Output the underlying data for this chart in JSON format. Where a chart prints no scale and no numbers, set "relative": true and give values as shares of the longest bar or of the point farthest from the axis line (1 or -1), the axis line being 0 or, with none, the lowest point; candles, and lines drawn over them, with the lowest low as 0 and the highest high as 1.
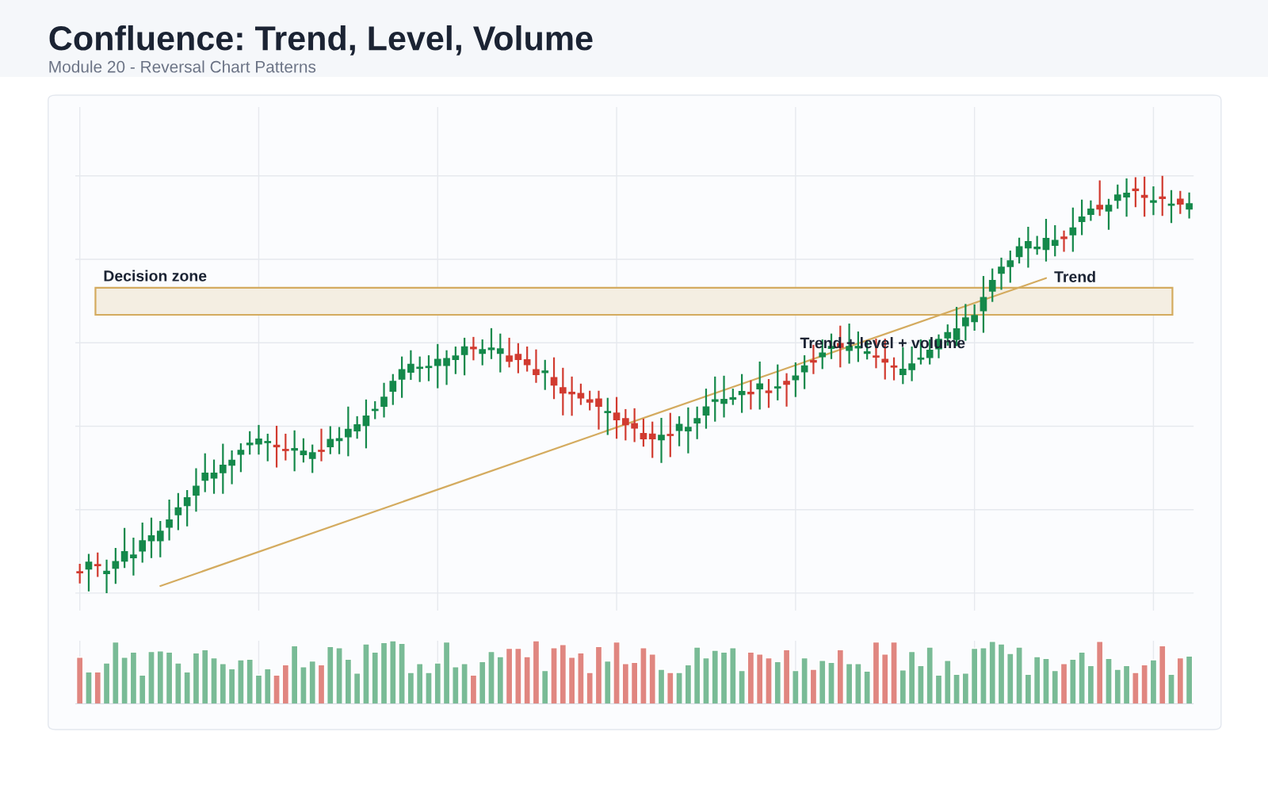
{
  "chart_data": [
    {
      "type": "candlestick",
      "title": "Confluence: Trend, Level, Volume",
      "subtitle": "Module 20 - Reversal Chart Patterns",
      "categories": [
        null,
        null,
        null,
        null,
        null,
        null,
        null,
        null,
        null,
        null,
        null,
        null,
        null,
        null,
        null,
        null,
        null,
        null,
        null,
        null,
        null,
        null,
        null,
        null,
        null,
        null,
        null,
        null,
        null,
        null,
        null,
        null,
        null,
        null,
        null,
        null,
        null,
        null,
        null,
        null,
        null,
        null,
        null,
        null,
        null,
        null,
        null,
        null,
        null,
        null,
        null,
        null,
        null,
        null,
        null,
        null,
        null,
        null,
        null,
        null,
        null,
        null,
        null,
        null,
        null,
        null,
        null,
        null,
        null,
        null,
        null,
        null,
        null,
        null,
        null,
        null,
        null,
        null,
        null,
        null,
        null,
        null,
        null,
        null,
        null,
        null,
        null,
        null,
        null,
        null,
        null,
        null,
        null,
        null,
        null,
        null,
        null,
        null,
        null,
        null,
        null,
        null,
        null,
        null,
        null,
        null,
        null,
        null,
        null,
        null,
        null,
        null,
        null,
        null,
        null,
        null,
        null,
        null,
        null,
        null,
        null,
        null,
        null,
        null,
        null
      ],
      "ohlc": [
        [
          0.051,
          0.07,
          0.023,
          0.049
        ],
        [
          0.058,
          0.094,
          0.004,
          0.074
        ],
        [
          0.068,
          0.097,
          0.039,
          0.066
        ],
        [
          0.047,
          0.08,
          0,
          0.052
        ],
        [
          0.06,
          0.108,
          0.022,
          0.075
        ],
        [
          0.077,
          0.156,
          0.06,
          0.099
        ],
        [
          0.085,
          0.133,
          0.042,
          0.091
        ],
        [
          0.101,
          0.169,
          0.073,
          0.125
        ],
        [
          0.126,
          0.181,
          0.084,
          0.137
        ],
        [
          0.126,
          0.173,
          0.086,
          0.148
        ],
        [
          0.158,
          0.224,
          0.126,
          0.175
        ],
        [
          0.188,
          0.24,
          0.151,
          0.204
        ],
        [
          0.21,
          0.247,
          0.16,
          0.228
        ],
        [
          0.235,
          0.299,
          0.195,
          0.256
        ],
        [
          0.271,
          0.335,
          0.242,
          0.287
        ],
        [
          0.276,
          0.32,
          0.238,
          0.287
        ],
        [
          0.289,
          0.358,
          0.238,
          0.306
        ],
        [
          0.307,
          0.342,
          0.261,
          0.318
        ],
        [
          0.333,
          0.359,
          0.29,
          0.342
        ],
        [
          0.356,
          0.388,
          0.332,
          0.359
        ],
        [
          0.358,
          0.403,
          0.332,
          0.369
        ],
        [
          0.361,
          0.382,
          0.316,
          0.363
        ],
        [
          0.354,
          0.401,
          0.301,
          0.351
        ],
        [
          0.344,
          0.382,
          0.318,
          0.342
        ],
        [
          0.343,
          0.39,
          0.292,
          0.346
        ],
        [
          0.332,
          0.371,
          0.313,
          0.34
        ],
        [
          0.323,
          0.356,
          0.288,
          0.336
        ],
        [
          0.342,
          0.394,
          0.316,
          0.34
        ],
        [
          0.351,
          0.4,
          0.333,
          0.368
        ],
        [
          0.366,
          0.398,
          0.333,
          0.37
        ],
        [
          0.375,
          0.447,
          0.328,
          0.392
        ],
        [
          0.389,
          0.424,
          0.37,
          0.403
        ],
        [
          0.402,
          0.464,
          0.347,
          0.424
        ],
        [
          0.438,
          0.46,
          0.417,
          0.44
        ],
        [
          0.448,
          0.504,
          0.421,
          0.469
        ],
        [
          0.484,
          0.525,
          0.451,
          0.507
        ],
        [
          0.513,
          0.567,
          0.468,
          0.535
        ],
        [
          0.53,
          0.582,
          0.511,
          0.548
        ],
        [
          0.539,
          0.567,
          0.506,
          0.541
        ],
        [
          0.541,
          0.57,
          0.508,
          0.543
        ],
        [
          0.546,
          0.597,
          0.491,
          0.56
        ],
        [
          0.546,
          0.582,
          0.499,
          0.562
        ],
        [
          0.56,
          0.591,
          0.525,
          0.568
        ],
        [
          0.572,
          0.612,
          0.522,
          0.59
        ],
        [
          0.589,
          0.614,
          0.558,
          0.586
        ],
        [
          0.575,
          0.608,
          0.546,
          0.583
        ],
        [
          0.584,
          0.635,
          0.561,
          0.587
        ],
        [
          0.575,
          0.622,
          0.529,
          0.585
        ],
        [
          0.568,
          0.612,
          0.541,
          0.556
        ],
        [
          0.572,
          0.599,
          0.527,
          0.56
        ],
        [
          0.559,
          0.591,
          0.531,
          0.548
        ],
        [
          0.535,
          0.584,
          0.504,
          0.524
        ],
        [
          0.529,
          0.559,
          0.487,
          0.532
        ],
        [
          0.516,
          0.565,
          0.465,
          0.499
        ],
        [
          0.492,
          0.54,
          0.426,
          0.48
        ],
        [
          0.481,
          0.519,
          0.425,
          0.478
        ],
        [
          0.478,
          0.502,
          0.451,
          0.468
        ],
        [
          0.463,
          0.485,
          0.438,
          0.458
        ],
        [
          0.465,
          0.485,
          0.392,
          0.448
        ],
        [
          0.433,
          0.468,
          0.379,
          0.435
        ],
        [
          0.431,
          0.47,
          0.37,
          0.416
        ],
        [
          0.418,
          0.441,
          0.366,
          0.404
        ],
        [
          0.406,
          0.443,
          0.362,
          0.396
        ],
        [
          0.382,
          0.418,
          0.351,
          0.37
        ],
        [
          0.381,
          0.411,
          0.324,
          0.37
        ],
        [
          0.368,
          0.42,
          0.312,
          0.378
        ],
        [
          0.38,
          0.432,
          0.326,
          0.378
        ],
        [
          0.39,
          0.424,
          0.352,
          0.404
        ],
        [
          0.389,
          0.445,
          0.335,
          0.397
        ],
        [
          0.408,
          0.447,
          0.369,
          0.418
        ],
        [
          0.427,
          0.49,
          0.394,
          0.446
        ],
        [
          0.46,
          0.519,
          0.411,
          0.463
        ],
        [
          0.455,
          0.521,
          0.421,
          0.464
        ],
        [
          0.465,
          0.49,
          0.451,
          0.468
        ],
        [
          0.476,
          0.525,
          0.432,
          0.483
        ],
        [
          0.481,
          0.51,
          0.44,
          0.478
        ],
        [
          0.49,
          0.555,
          0.44,
          0.501
        ],
        [
          0.484,
          0.513,
          0.444,
          0.481
        ],
        [
          0.492,
          0.548,
          0.462,
          0.494
        ],
        [
          0.507,
          0.527,
          0.447,
          0.501
        ],
        [
          0.512,
          0.553,
          0.47,
          0.52
        ],
        [
          0.531,
          0.57,
          0.489,
          0.544
        ],
        [
          0.557,
          0.595,
          0.525,
          0.554
        ],
        [
          0.567,
          0.608,
          0.537,
          0.575
        ],
        [
          0.587,
          0.622,
          0.561,
          0.591
        ],
        [
          0.598,
          0.641,
          0.541,
          0.589
        ],
        [
          0.582,
          0.646,
          0.55,
          0.591
        ],
        [
          0.588,
          0.627,
          0.554,
          0.591
        ],
        [
          0.575,
          0.605,
          0.56,
          0.578
        ],
        [
          0.568,
          0.61,
          0.539,
          0.566
        ],
        [
          0.56,
          0.61,
          0.512,
          0.554
        ],
        [
          0.544,
          0.565,
          0.51,
          0.542
        ],
        [
          0.524,
          0.589,
          0.501,
          0.536
        ],
        [
          0.536,
          0.591,
          0.508,
          0.549
        ],
        [
          0.561,
          0.608,
          0.548,
          0.563
        ],
        [
          0.565,
          0.608,
          0.548,
          0.582
        ],
        [
          0.586,
          0.62,
          0.563,
          0.608
        ],
        [
          0.612,
          0.644,
          0.593,
          0.624
        ],
        [
          0.608,
          0.686,
          0.592,
          0.633
        ],
        [
          0.641,
          0.693,
          0.605,
          0.659
        ],
        [
          0.651,
          0.692,
          0.629,
          0.665
        ],
        [
          0.677,
          0.76,
          0.624,
          0.708
        ],
        [
          0.724,
          0.778,
          0.698,
          0.749
        ],
        [
          0.767,
          0.804,
          0.727,
          0.781
        ],
        [
          0.783,
          0.821,
          0.744,
          0.796
        ],
        [
          0.807,
          0.852,
          0.79,
          0.83
        ],
        [
          0.828,
          0.878,
          0.78,
          0.842
        ],
        [
          0.826,
          0.856,
          0.811,
          0.829
        ],
        [
          0.824,
          0.897,
          0.795,
          0.85
        ],
        [
          0.834,
          0.882,
          0.807,
          0.845
        ],
        [
          0.853,
          0.869,
          0.818,
          0.85
        ],
        [
          0.859,
          0.924,
          0.818,
          0.875
        ],
        [
          0.891,
          0.943,
          0.858,
          0.901
        ],
        [
          0.908,
          0.941,
          0.892,
          0.92
        ],
        [
          0.929,
          0.989,
          0.904,
          0.921
        ],
        [
          0.916,
          0.945,
          0.871,
          0.929
        ],
        [
          0.942,
          0.979,
          0.921,
          0.954
        ],
        [
          0.95,
          0.994,
          0.902,
          0.958
        ],
        [
          0.968,
          0.997,
          0.925,
          0.965
        ],
        [
          0.953,
          0.998,
          0.902,
          0.949
        ],
        [
          0.937,
          0.975,
          0.906,
          0.94
        ],
        [
          0.949,
          1,
          0.904,
          0.946
        ],
        [
          0.93,
          0.966,
          0.887,
          0.932
        ],
        [
          0.944,
          0.964,
          0.909,
          0.933
        ],
        [
          0.921,
          0.96,
          0.898,
          0.933
        ]
      ],
      "colors": [
        "#d13b30",
        "#15894b",
        "#d13b30",
        "#15894b",
        "#15894b",
        "#15894b",
        "#15894b",
        "#15894b",
        "#15894b",
        "#15894b",
        "#15894b",
        "#15894b",
        "#15894b",
        "#15894b",
        "#15894b",
        "#15894b",
        "#15894b",
        "#15894b",
        "#15894b",
        "#15894b",
        "#15894b",
        "#15894b",
        "#d13b30",
        "#d13b30",
        "#15894b",
        "#15894b",
        "#15894b",
        "#d13b30",
        "#15894b",
        "#15894b",
        "#15894b",
        "#15894b",
        "#15894b",
        "#15894b",
        "#15894b",
        "#15894b",
        "#15894b",
        "#15894b",
        "#15894b",
        "#15894b",
        "#15894b",
        "#15894b",
        "#15894b",
        "#15894b",
        "#d13b30",
        "#15894b",
        "#15894b",
        "#15894b",
        "#d13b30",
        "#d13b30",
        "#d13b30",
        "#d13b30",
        "#15894b",
        "#d13b30",
        "#d13b30",
        "#d13b30",
        "#d13b30",
        "#d13b30",
        "#d13b30",
        "#15894b",
        "#d13b30",
        "#d13b30",
        "#d13b30",
        "#d13b30",
        "#d13b30",
        "#15894b",
        "#d13b30",
        "#15894b",
        "#15894b",
        "#15894b",
        "#15894b",
        "#15894b",
        "#15894b",
        "#15894b",
        "#15894b",
        "#d13b30",
        "#15894b",
        "#d13b30",
        "#15894b",
        "#d13b30",
        "#15894b",
        "#15894b",
        "#d13b30",
        "#15894b",
        "#15894b",
        "#d13b30",
        "#15894b",
        "#15894b",
        "#15894b",
        "#d13b30",
        "#d13b30",
        "#d13b30",
        "#15894b",
        "#15894b",
        "#15894b",
        "#15894b",
        "#15894b",
        "#15894b",
        "#15894b",
        "#15894b",
        "#15894b",
        "#15894b",
        "#15894b",
        "#15894b",
        "#15894b",
        "#15894b",
        "#15894b",
        "#15894b",
        "#15894b",
        "#15894b",
        "#d13b30",
        "#15894b",
        "#15894b",
        "#15894b",
        "#d13b30",
        "#15894b",
        "#15894b",
        "#15894b",
        "#d13b30",
        "#d13b30",
        "#15894b",
        "#d13b30",
        "#15894b",
        "#d13b30",
        "#15894b"
      ],
      "series": [
        {
          "type": "line",
          "name": "Trend",
          "color": "#d4ab5f",
          "values": [
            null,
            null,
            null,
            null,
            null,
            null,
            null,
            null,
            null,
            0.017,
            null,
            null,
            null,
            null,
            null,
            null,
            null,
            null,
            null,
            null,
            null,
            null,
            null,
            null,
            null,
            null,
            null,
            null,
            null,
            null,
            null,
            null,
            null,
            null,
            null,
            null,
            null,
            null,
            null,
            null,
            null,
            null,
            null,
            null,
            null,
            null,
            null,
            null,
            null,
            null,
            null,
            null,
            null,
            null,
            null,
            null,
            null,
            null,
            null,
            null,
            null,
            null,
            null,
            null,
            null,
            null,
            null,
            null,
            null,
            null,
            null,
            null,
            null,
            null,
            null,
            null,
            null,
            null,
            null,
            null,
            null,
            null,
            null,
            null,
            null,
            null,
            null,
            null,
            null,
            null,
            null,
            null,
            null,
            null,
            null,
            null,
            null,
            null,
            null,
            null,
            null,
            null,
            null,
            null,
            null,
            null,
            null,
            null,
            0.755,
            null,
            null,
            null,
            null,
            null,
            null,
            null,
            null,
            null,
            null,
            null,
            null,
            null,
            null,
            null,
            null
          ]
        }
      ],
      "bands": [
        {
          "axis": "y",
          "from": 0.667,
          "to": 0.732,
          "label": "Decision zone",
          "color": "#f4eee2"
        }
      ],
      "annotations": [
        "Trend + level + volume"
      ],
      "relative": true,
      "grid": true,
      "tick_labels": false
    },
    {
      "type": "bar",
      "categories": [
        null,
        null,
        null,
        null,
        null,
        null,
        null,
        null,
        null,
        null,
        null,
        null,
        null,
        null,
        null,
        null,
        null,
        null,
        null,
        null,
        null,
        null,
        null,
        null,
        null,
        null,
        null,
        null,
        null,
        null,
        null,
        null,
        null,
        null,
        null,
        null,
        null,
        null,
        null,
        null,
        null,
        null,
        null,
        null,
        null,
        null,
        null,
        null,
        null,
        null,
        null,
        null,
        null,
        null,
        null,
        null,
        null,
        null,
        null,
        null,
        null,
        null,
        null,
        null,
        null,
        null,
        null,
        null,
        null,
        null,
        null,
        null,
        null,
        null,
        null,
        null,
        null,
        null,
        null,
        null,
        null,
        null,
        null,
        null,
        null,
        null,
        null,
        null,
        null,
        null,
        null,
        null,
        null,
        null,
        null,
        null,
        null,
        null,
        null,
        null,
        null,
        null,
        null,
        null,
        null,
        null,
        null,
        null,
        null,
        null,
        null,
        null,
        null,
        null,
        null,
        null,
        null,
        null,
        null,
        null,
        null,
        null,
        null,
        null,
        null
      ],
      "values": [
        0.74,
        0.51,
        0.51,
        0.65,
        0.98,
        0.74,
        0.82,
        0.46,
        0.83,
        0.84,
        0.82,
        0.65,
        0.51,
        0.81,
        0.86,
        0.73,
        0.64,
        0.56,
        0.7,
        0.71,
        0.46,
        0.56,
        0.46,
        0.62,
        0.92,
        0.59,
        0.68,
        0.62,
        0.91,
        0.89,
        0.71,
        0.49,
        0.95,
        0.82,
        0.97,
        1,
        0.96,
        0.5,
        0.64,
        0.5,
        0.65,
        0.98,
        0.59,
        0.64,
        0.46,
        0.67,
        0.83,
        0.75,
        0.88,
        0.88,
        0.75,
        1,
        0.53,
        0.89,
        0.94,
        0.74,
        0.81,
        0.5,
        0.91,
        0.68,
        0.98,
        0.64,
        0.66,
        0.89,
        0.79,
        0.55,
        0.5,
        0.5,
        0.62,
        0.9,
        0.73,
        0.85,
        0.82,
        0.89,
        0.53,
        0.82,
        0.79,
        0.73,
        0.67,
        0.86,
        0.53,
        0.73,
        0.55,
        0.69,
        0.66,
        0.86,
        0.64,
        0.64,
        0.52,
        0.98,
        0.79,
        0.98,
        0.54,
        0.83,
        0.61,
        0.9,
        0.46,
        0.69,
        0.47,
        0.49,
        0.88,
        0.89,
        0.99,
        0.95,
        0.8,
        0.9,
        0.47,
        0.75,
        0.72,
        0.53,
        0.64,
        0.71,
        0.82,
        0.61,
        0.99,
        0.72,
        0.55,
        0.61,
        0.5,
        0.62,
        0.7,
        0.92,
        0.47,
        0.73,
        0.76
      ],
      "colors": [
        "#e08680",
        "#79bb96",
        "#e08680",
        "#79bb96",
        "#79bb96",
        "#79bb96",
        "#79bb96",
        "#79bb96",
        "#79bb96",
        "#79bb96",
        "#79bb96",
        "#79bb96",
        "#79bb96",
        "#79bb96",
        "#79bb96",
        "#79bb96",
        "#79bb96",
        "#79bb96",
        "#79bb96",
        "#79bb96",
        "#79bb96",
        "#79bb96",
        "#e08680",
        "#e08680",
        "#79bb96",
        "#79bb96",
        "#79bb96",
        "#e08680",
        "#79bb96",
        "#79bb96",
        "#79bb96",
        "#79bb96",
        "#79bb96",
        "#79bb96",
        "#79bb96",
        "#79bb96",
        "#79bb96",
        "#79bb96",
        "#79bb96",
        "#79bb96",
        "#79bb96",
        "#79bb96",
        "#79bb96",
        "#79bb96",
        "#e08680",
        "#79bb96",
        "#79bb96",
        "#79bb96",
        "#e08680",
        "#e08680",
        "#e08680",
        "#e08680",
        "#79bb96",
        "#e08680",
        "#e08680",
        "#e08680",
        "#e08680",
        "#e08680",
        "#e08680",
        "#79bb96",
        "#e08680",
        "#e08680",
        "#e08680",
        "#e08680",
        "#e08680",
        "#79bb96",
        "#e08680",
        "#79bb96",
        "#79bb96",
        "#79bb96",
        "#79bb96",
        "#79bb96",
        "#79bb96",
        "#79bb96",
        "#79bb96",
        "#e08680",
        "#e08680",
        "#e08680",
        "#79bb96",
        "#e08680",
        "#79bb96",
        "#79bb96",
        "#e08680",
        "#79bb96",
        "#79bb96",
        "#e08680",
        "#79bb96",
        "#79bb96",
        "#79bb96",
        "#e08680",
        "#e08680",
        "#e08680",
        "#79bb96",
        "#79bb96",
        "#79bb96",
        "#79bb96",
        "#79bb96",
        "#79bb96",
        "#79bb96",
        "#79bb96",
        "#79bb96",
        "#79bb96",
        "#79bb96",
        "#79bb96",
        "#79bb96",
        "#79bb96",
        "#79bb96",
        "#79bb96",
        "#79bb96",
        "#79bb96",
        "#e08680",
        "#79bb96",
        "#79bb96",
        "#79bb96",
        "#e08680",
        "#79bb96",
        "#79bb96",
        "#79bb96",
        "#e08680",
        "#e08680",
        "#79bb96",
        "#e08680",
        "#79bb96",
        "#e08680",
        "#79bb96"
      ],
      "relative": true,
      "grid": "x",
      "tick_labels": false
    }
  ]
}
